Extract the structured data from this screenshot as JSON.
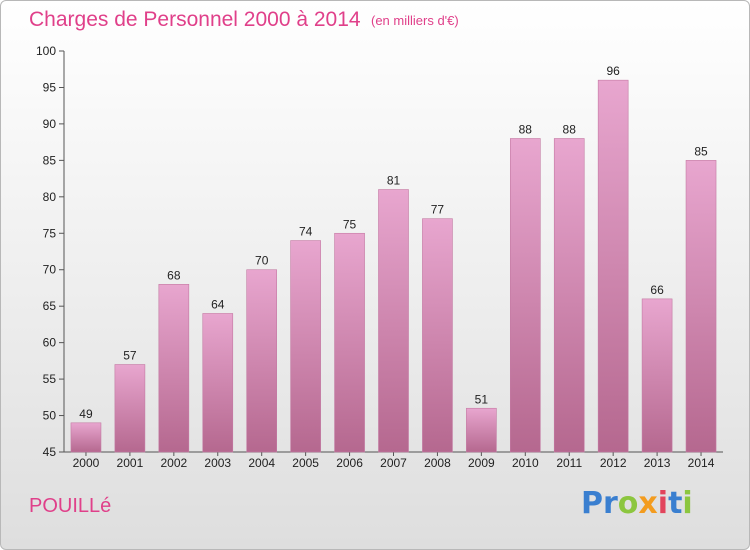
{
  "header": {
    "title": "Charges de Personnel 2000 à 2014",
    "subtitle": "(en milliers d'€)"
  },
  "footer": {
    "place": "POUILLé",
    "brand_letters": [
      {
        "ch": "P",
        "color": "#3a7fd0"
      },
      {
        "ch": "r",
        "color": "#3a7fd0"
      },
      {
        "ch": "o",
        "color": "#8cc63f"
      },
      {
        "ch": "x",
        "color": "#f39c1f"
      },
      {
        "ch": "i",
        "color": "#e2445c"
      },
      {
        "ch": "t",
        "color": "#3a7fd0"
      },
      {
        "ch": "i",
        "color": "#8cc63f"
      }
    ]
  },
  "colors": {
    "accent": "#e0408a",
    "bar_top": "#e8a6cf",
    "bar_bottom": "#b5688f",
    "bar_edge": "#c47aa3"
  },
  "chart_data": {
    "type": "bar",
    "title": "Charges de Personnel 2000 à 2014",
    "subtitle": "(en milliers d'€)",
    "categories": [
      "2000",
      "2001",
      "2002",
      "2003",
      "2004",
      "2005",
      "2006",
      "2007",
      "2008",
      "2009",
      "2010",
      "2011",
      "2012",
      "2013",
      "2014"
    ],
    "values": [
      49,
      57,
      68,
      64,
      70,
      74,
      75,
      81,
      77,
      51,
      88,
      88,
      96,
      66,
      85
    ],
    "ylim": [
      45,
      100
    ],
    "yticks": [
      45,
      50,
      55,
      60,
      65,
      70,
      75,
      80,
      85,
      90,
      95,
      100
    ],
    "grid": false,
    "legend": "none"
  }
}
